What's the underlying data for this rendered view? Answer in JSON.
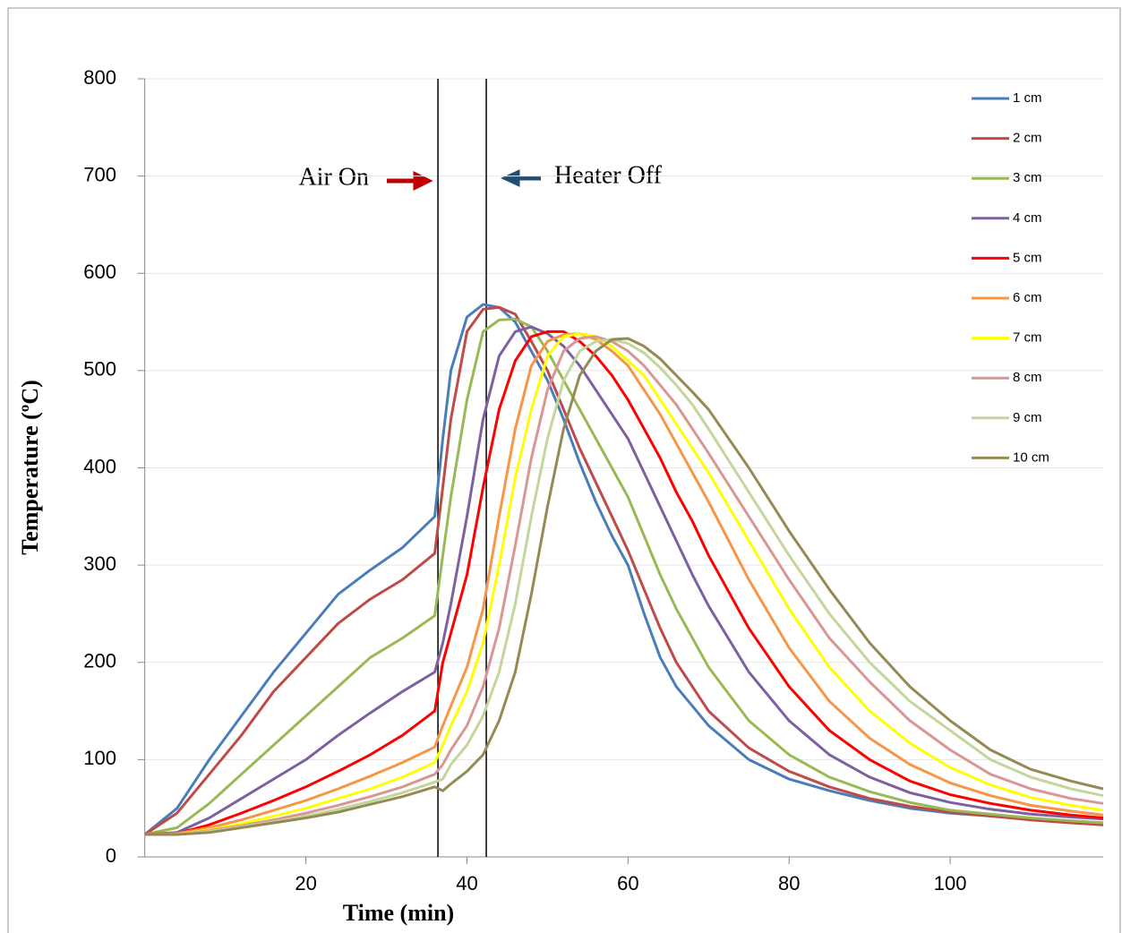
{
  "chart_data": {
    "type": "line",
    "x_label": "Time (min)",
    "y_label": "Temperature (ºC)",
    "xlim": [
      0,
      119
    ],
    "xticks": [
      20,
      40,
      60,
      80,
      100
    ],
    "ylim": [
      0,
      800
    ],
    "yticks": [
      0,
      100,
      200,
      300,
      400,
      500,
      600,
      700,
      800
    ],
    "grid": true,
    "legend": "upper right",
    "x": [
      0,
      4,
      8,
      12,
      16,
      20,
      24,
      28,
      32,
      36,
      37,
      38,
      40,
      42,
      44,
      46,
      48,
      50,
      52,
      54,
      56,
      58,
      60,
      62,
      64,
      66,
      68,
      70,
      75,
      80,
      85,
      90,
      95,
      100,
      105,
      110,
      115,
      119
    ],
    "series": [
      {
        "name": "1 cm",
        "color": "#4a7ebb",
        "values": [
          23,
          50,
          100,
          145,
          190,
          230,
          270,
          295,
          318,
          350,
          430,
          500,
          555,
          568,
          565,
          550,
          520,
          490,
          450,
          405,
          365,
          330,
          300,
          250,
          205,
          175,
          155,
          135,
          100,
          80,
          68,
          58,
          50,
          45,
          42,
          39,
          37,
          35
        ]
      },
      {
        "name": "2 cm",
        "color": "#be4b48",
        "values": [
          23,
          45,
          85,
          125,
          170,
          205,
          240,
          265,
          285,
          312,
          380,
          450,
          540,
          563,
          565,
          558,
          530,
          500,
          460,
          420,
          385,
          350,
          315,
          275,
          235,
          200,
          175,
          150,
          112,
          88,
          72,
          60,
          52,
          46,
          42,
          38,
          35,
          33
        ]
      },
      {
        "name": "3 cm",
        "color": "#98b954",
        "values": [
          23,
          30,
          55,
          85,
          115,
          145,
          175,
          205,
          225,
          248,
          310,
          370,
          470,
          540,
          552,
          553,
          545,
          520,
          490,
          460,
          430,
          400,
          370,
          330,
          290,
          255,
          225,
          195,
          140,
          105,
          82,
          67,
          56,
          48,
          44,
          40,
          37,
          35
        ]
      },
      {
        "name": "4 cm",
        "color": "#7d60a0",
        "values": [
          23,
          25,
          40,
          60,
          80,
          100,
          125,
          148,
          170,
          190,
          220,
          260,
          350,
          450,
          515,
          540,
          545,
          538,
          525,
          505,
          480,
          455,
          430,
          395,
          360,
          325,
          290,
          258,
          190,
          140,
          105,
          82,
          66,
          56,
          49,
          44,
          41,
          39
        ]
      },
      {
        "name": "5 cm",
        "color": "#ff0000",
        "values": [
          23,
          24,
          33,
          45,
          58,
          72,
          88,
          105,
          125,
          150,
          200,
          230,
          290,
          380,
          460,
          510,
          535,
          540,
          540,
          530,
          515,
          495,
          470,
          440,
          410,
          375,
          345,
          310,
          235,
          175,
          130,
          100,
          78,
          64,
          55,
          48,
          43,
          40
        ]
      },
      {
        "name": "6 cm",
        "color": "#f79646",
        "values": [
          23,
          24,
          30,
          38,
          48,
          58,
          70,
          83,
          97,
          113,
          135,
          155,
          195,
          255,
          350,
          440,
          505,
          530,
          537,
          538,
          532,
          520,
          505,
          480,
          455,
          425,
          395,
          365,
          285,
          215,
          160,
          122,
          95,
          76,
          63,
          53,
          47,
          43
        ]
      },
      {
        "name": "7 cm",
        "color": "#ffff00",
        "values": [
          23,
          23,
          28,
          34,
          42,
          50,
          60,
          70,
          82,
          97,
          115,
          135,
          170,
          220,
          300,
          390,
          460,
          515,
          535,
          538,
          535,
          525,
          510,
          495,
          470,
          445,
          420,
          395,
          325,
          255,
          195,
          150,
          117,
          92,
          74,
          61,
          53,
          48
        ]
      },
      {
        "name": "8 cm",
        "color": "#d99694",
        "values": [
          23,
          23,
          27,
          32,
          38,
          45,
          53,
          62,
          72,
          85,
          95,
          110,
          135,
          175,
          235,
          320,
          410,
          480,
          520,
          533,
          535,
          530,
          520,
          505,
          485,
          465,
          440,
          415,
          350,
          285,
          225,
          180,
          140,
          110,
          85,
          70,
          60,
          55
        ]
      },
      {
        "name": "9 cm",
        "color": "#c3d69b",
        "values": [
          23,
          23,
          26,
          31,
          36,
          42,
          49,
          57,
          66,
          77,
          80,
          95,
          115,
          145,
          190,
          260,
          350,
          430,
          490,
          520,
          530,
          532,
          528,
          518,
          503,
          485,
          465,
          440,
          375,
          310,
          250,
          200,
          160,
          130,
          100,
          82,
          70,
          63
        ]
      },
      {
        "name": "10 cm",
        "color": "#948a54",
        "values": [
          23,
          23,
          25,
          30,
          35,
          40,
          46,
          54,
          62,
          72,
          68,
          75,
          88,
          105,
          140,
          190,
          270,
          360,
          440,
          495,
          520,
          532,
          533,
          525,
          512,
          495,
          478,
          460,
          400,
          335,
          275,
          220,
          175,
          140,
          110,
          90,
          78,
          70
        ]
      }
    ],
    "vertical_lines": [
      36.4,
      42.4
    ],
    "annotations": [
      "Air On",
      "Heater Off"
    ]
  }
}
